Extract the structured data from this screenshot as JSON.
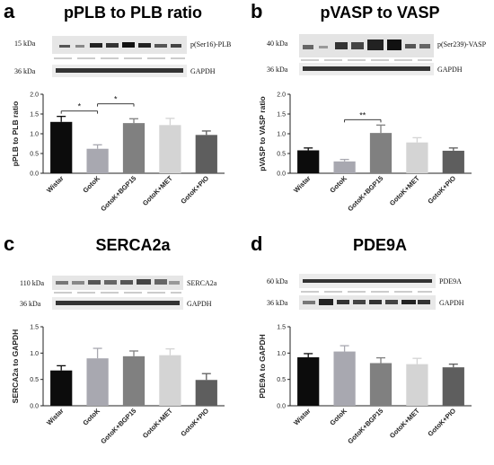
{
  "panels": [
    {
      "letter": "a",
      "title": "pPLB to PLB ratio",
      "blot": {
        "top_left": "15 kDa",
        "bottom_left": "36 kDa",
        "top_right": "p(Ser16)-PLB",
        "bottom_right": "GAPDH"
      },
      "chart_data": {
        "type": "bar",
        "categories": [
          "Wistar",
          "GotoK",
          "GotoK+BGP15",
          "GotoK+MET",
          "GotoK+PIO"
        ],
        "values": [
          1.3,
          0.62,
          1.27,
          1.22,
          0.97
        ],
        "errors": [
          0.14,
          0.1,
          0.11,
          0.17,
          0.1
        ],
        "ylabel": "pPLB to PLB ratio",
        "ylim": [
          0,
          2.0
        ],
        "yticks": [
          "0.0",
          "0.5",
          "1.0",
          "1.5",
          "2.0"
        ],
        "significance": [
          {
            "from": "Wistar",
            "to": "GotoK",
            "label": "*"
          },
          {
            "from": "GotoK",
            "to": "GotoK+BGP15",
            "label": "*"
          }
        ]
      }
    },
    {
      "letter": "b",
      "title": "pVASP to VASP",
      "blot": {
        "top_left": "40 kDa",
        "bottom_left": "36 kDa",
        "top_right": "p(Ser239)-VASP",
        "bottom_right": "GAPDH"
      },
      "chart_data": {
        "type": "bar",
        "categories": [
          "Wistar",
          "GotoK",
          "GotoK+BGP15",
          "GotoK+MET",
          "GotoK+PIO"
        ],
        "values": [
          0.58,
          0.3,
          1.02,
          0.78,
          0.57
        ],
        "errors": [
          0.06,
          0.05,
          0.2,
          0.12,
          0.07
        ],
        "ylabel": "pVASP to VASP ratio",
        "ylim": [
          0,
          2.0
        ],
        "yticks": [
          "0.0",
          "0.5",
          "1.0",
          "1.5",
          "2.0"
        ],
        "significance": [
          {
            "from": "GotoK",
            "to": "GotoK+BGP15",
            "label": "**"
          }
        ]
      }
    },
    {
      "letter": "c",
      "title": "SERCA2a",
      "blot": {
        "top_left": "110 kDa",
        "bottom_left": "36 kDa",
        "top_right": "SERCA2a",
        "bottom_right": "GAPDH"
      },
      "chart_data": {
        "type": "bar",
        "categories": [
          "Wistar",
          "GotoK",
          "GotoK+BGP15",
          "GotoK+MET",
          "GotoK+PIO"
        ],
        "values": [
          0.67,
          0.9,
          0.94,
          0.96,
          0.49
        ],
        "errors": [
          0.09,
          0.19,
          0.1,
          0.12,
          0.12
        ],
        "ylabel": "SERCA2a to GAPDH",
        "ylim": [
          0,
          1.5
        ],
        "yticks": [
          "0.0",
          "0.5",
          "1.0",
          "1.5"
        ],
        "significance": []
      }
    },
    {
      "letter": "d",
      "title": "PDE9A",
      "blot": {
        "top_left": "60 kDa",
        "bottom_left": "36 kDa",
        "top_right": "PDE9A",
        "bottom_right": "GAPDH"
      },
      "chart_data": {
        "type": "bar",
        "categories": [
          "Wistar",
          "GotoK",
          "GotoK+BGP15",
          "GotoK+MET",
          "GotoK+PIO"
        ],
        "values": [
          0.92,
          1.03,
          0.81,
          0.79,
          0.73
        ],
        "errors": [
          0.07,
          0.11,
          0.1,
          0.11,
          0.06
        ],
        "ylabel": "PDE9A to GAPDH",
        "ylim": [
          0,
          1.5
        ],
        "yticks": [
          "0.0",
          "0.5",
          "1.0",
          "1.5"
        ],
        "significance": []
      }
    }
  ],
  "bar_colors": [
    "#0c0c0c",
    "#a8a8b0",
    "#808080",
    "#d4d4d4",
    "#5e5e5e"
  ]
}
